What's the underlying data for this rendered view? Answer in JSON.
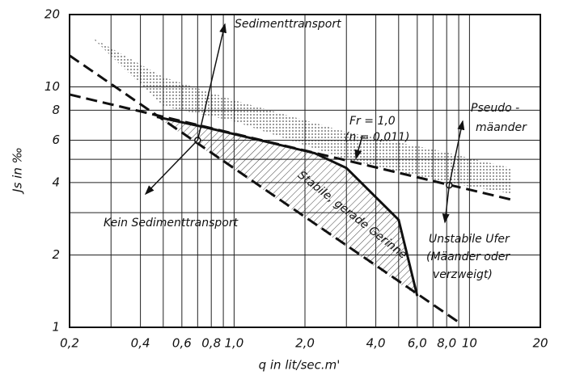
{
  "chart_data": {
    "type": "line",
    "xlabel": "q in lit/sec.m'",
    "ylabel": "Js in ‰",
    "log_x": true,
    "log_y": true,
    "grid": true,
    "xlim": [
      0.2,
      20
    ],
    "ylim": [
      1,
      20
    ],
    "xticks": [
      {
        "value": 0.2,
        "label": "0,2"
      },
      {
        "value": 0.4,
        "label": "0,4"
      },
      {
        "value": 0.6,
        "label": "0,6"
      },
      {
        "value": 0.8,
        "label": "0,8"
      },
      {
        "value": 1.0,
        "label": "1,0"
      },
      {
        "value": 2.0,
        "label": "2,0"
      },
      {
        "value": 4.0,
        "label": "4,0"
      },
      {
        "value": 6.0,
        "label": "6,0"
      },
      {
        "value": 8.0,
        "label": "8,0"
      },
      10,
      20
    ],
    "yticks": [
      1,
      2,
      4,
      6,
      8,
      10,
      20
    ],
    "x_minor_grid": [
      0.3,
      0.5,
      0.7,
      0.9,
      3,
      5,
      7,
      9
    ],
    "y_minor_grid": [
      3,
      5
    ],
    "color": "#111111",
    "lines": [
      {
        "x": [
          0.2,
          9.0
        ],
        "values": [
          13.5,
          1.05
        ],
        "dashed": true
      },
      {
        "x": [
          0.2,
          15
        ],
        "values": [
          9.3,
          3.4
        ],
        "dashed": true
      },
      {
        "x": [
          0.47,
          0.75,
          2.2,
          3.0,
          5.0,
          6.0
        ],
        "values": [
          7.5,
          6.8,
          5.3,
          4.6,
          2.8,
          1.35
        ],
        "dashed": false
      }
    ],
    "regions": [
      {
        "pattern": "dots",
        "x": [
          0.25,
          0.5,
          1.0,
          3.0,
          7.0,
          15,
          15,
          8,
          3,
          1,
          0.5
        ],
        "values": [
          16,
          11,
          8.8,
          6.5,
          5.5,
          4.6,
          3.6,
          4.0,
          5.0,
          7.2,
          8.3
        ]
      },
      {
        "pattern": "hatch",
        "x": [
          0.47,
          0.75,
          2.2,
          3.0,
          5.0,
          6.0
        ],
        "values": [
          7.5,
          6.8,
          5.3,
          4.6,
          2.8,
          1.35
        ]
      }
    ],
    "points": {
      "x": [
        0.7,
        8.2
      ],
      "values": [
        6.0,
        3.9
      ]
    },
    "annotations": [
      "Sedimenttransport",
      "Kein Sedimenttransport",
      "Stabile, gerade Gerinne",
      "Fr = 1,0",
      "(n = 0,011)",
      "Pseudo -",
      "mäander",
      "Unstabile Ufer",
      "(Mäander oder",
      "verzweigt)"
    ]
  }
}
